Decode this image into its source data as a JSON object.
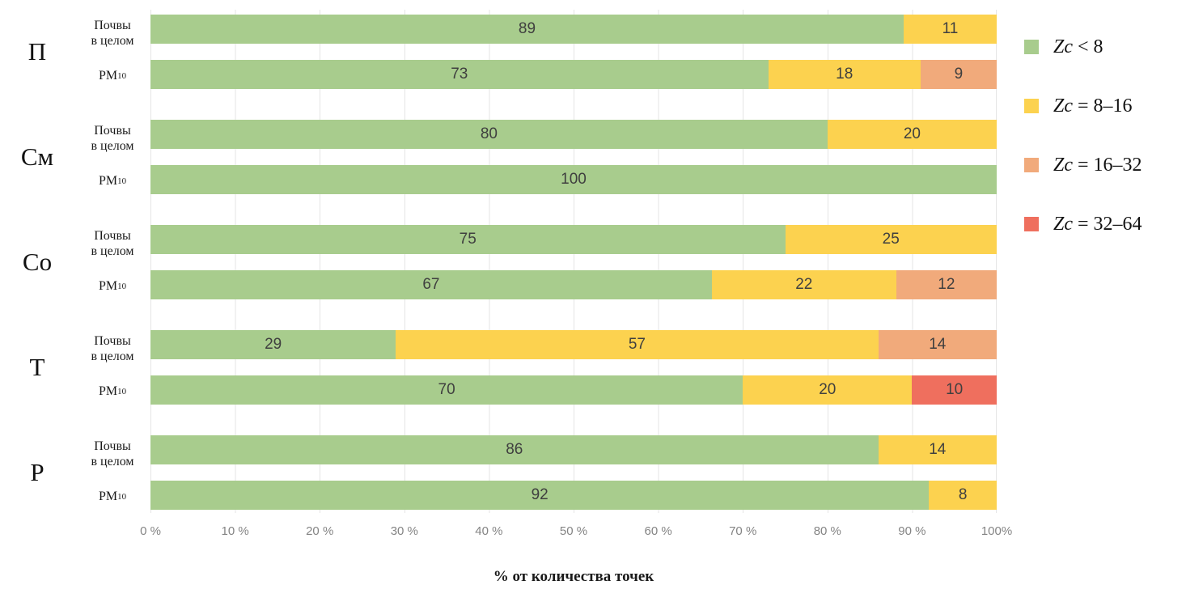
{
  "chart_data": {
    "type": "bar",
    "variant": "horizontal-stacked-100pct",
    "xlabel": "% от количества точек",
    "xlim": [
      0,
      100
    ],
    "x_ticks": [
      "0 %",
      "10 %",
      "20 %",
      "30 %",
      "40 %",
      "50 %",
      "60 %",
      "70 %",
      "80 %",
      "90 %",
      "100%"
    ],
    "grid": "vertical-light",
    "legend_position": "right",
    "level_keys": [
      "zc-lt-8",
      "zc-8-16",
      "zc-16-32",
      "zc-32-64"
    ],
    "level_colors": [
      "#a8cc8d",
      "#fcd24f",
      "#f1aa7b",
      "#ef6f5e"
    ],
    "value_text_color": "#3f3f3f",
    "legend": [
      {
        "zc": "Zc",
        "rest": " < 8",
        "color": "#a8cc8d"
      },
      {
        "zc": "Zc",
        "rest": " = 8–16",
        "color": "#fcd24f"
      },
      {
        "zc": "Zc",
        "rest": " = 16–32",
        "color": "#f1aa7b"
      },
      {
        "zc": "Zc",
        "rest": " = 32–64",
        "color": "#ef6f5e"
      }
    ],
    "groups": [
      {
        "letter": "П",
        "bars": [
          {
            "label_lines": [
              "Почвы",
              "в целом"
            ],
            "segments": [
              {
                "value": 89,
                "level": 0
              },
              {
                "value": 11,
                "level": 1
              }
            ]
          },
          {
            "label_main": "PM",
            "label_sub": "10",
            "segments": [
              {
                "value": 73,
                "level": 0
              },
              {
                "value": 18,
                "level": 1
              },
              {
                "value": 9,
                "level": 2
              }
            ]
          }
        ]
      },
      {
        "letter": "См",
        "bars": [
          {
            "label_lines": [
              "Почвы",
              "в целом"
            ],
            "segments": [
              {
                "value": 80,
                "level": 0
              },
              {
                "value": 20,
                "level": 1
              }
            ]
          },
          {
            "label_main": "PM",
            "label_sub": "10",
            "segments": [
              {
                "value": 100,
                "level": 0
              }
            ]
          }
        ]
      },
      {
        "letter": "Со",
        "bars": [
          {
            "label_lines": [
              "Почвы",
              "в целом"
            ],
            "segments": [
              {
                "value": 75,
                "level": 0
              },
              {
                "value": 25,
                "level": 1
              }
            ]
          },
          {
            "label_main": "PM",
            "label_sub": "10",
            "segments": [
              {
                "value": 67,
                "level": 0
              },
              {
                "value": 22,
                "level": 1
              },
              {
                "value": 12,
                "level": 2
              }
            ]
          }
        ]
      },
      {
        "letter": "Т",
        "bars": [
          {
            "label_lines": [
              "Почвы",
              "в целом"
            ],
            "segments": [
              {
                "value": 29,
                "level": 0
              },
              {
                "value": 57,
                "level": 1
              },
              {
                "value": 14,
                "level": 2
              }
            ]
          },
          {
            "label_main": "PM",
            "label_sub": "10",
            "segments": [
              {
                "value": 70,
                "level": 0
              },
              {
                "value": 20,
                "level": 1
              },
              {
                "value": 10,
                "level": 3
              }
            ]
          }
        ]
      },
      {
        "letter": "Р",
        "bars": [
          {
            "label_lines": [
              "Почвы",
              "в целом"
            ],
            "segments": [
              {
                "value": 86,
                "level": 0
              },
              {
                "value": 14,
                "level": 1
              }
            ]
          },
          {
            "label_main": "PM",
            "label_sub": "10",
            "segments": [
              {
                "value": 92,
                "level": 0
              },
              {
                "value": 8,
                "level": 1
              }
            ]
          }
        ]
      }
    ]
  }
}
